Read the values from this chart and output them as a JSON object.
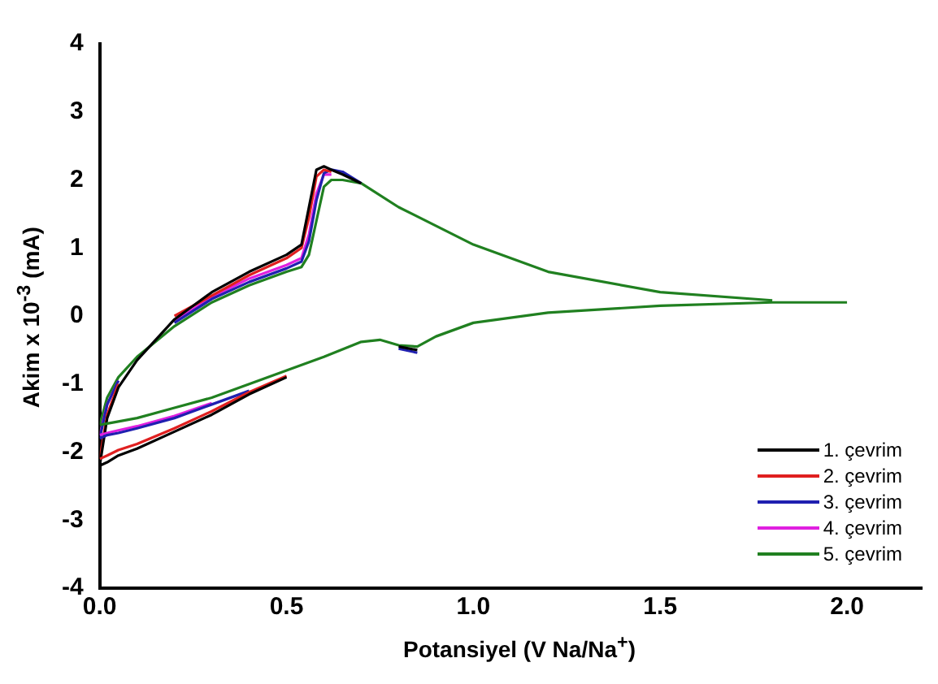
{
  "chart_data": {
    "type": "line",
    "xlabel": "Potansiyel (V Na/Na$^{+}$)",
    "ylabel": "Akim x 10$^{-3}$ (mA)",
    "series": [
      {
        "name": "1. çevrim",
        "color": "#000000",
        "x": [
          0.0,
          0.02,
          0.05,
          0.1,
          0.2,
          0.3,
          0.4,
          0.5,
          0.6,
          0.7,
          0.75,
          0.8,
          0.85
        ],
        "values": [
          -2.2,
          -2.15,
          -2.05,
          -1.95,
          -1.7,
          -1.45,
          -1.15,
          -0.9,
          null,
          null,
          null,
          -0.45,
          -0.5
        ]
      },
      {
        "name": "2. çevrim",
        "color": "#e02020",
        "x": [
          0.0,
          0.02,
          0.05,
          0.1,
          0.2,
          0.3,
          0.4,
          0.5
        ],
        "values": [
          -2.1,
          -2.05,
          -1.97,
          -1.88,
          -1.65,
          -1.4,
          -1.12,
          -0.88
        ]
      },
      {
        "name": "3. çevrim",
        "color": "#2020b0",
        "x": [
          0.0,
          0.02,
          0.05,
          0.1,
          0.2,
          0.3,
          0.4,
          0.5,
          0.6,
          0.7,
          0.75,
          0.8,
          0.85
        ],
        "values": [
          -1.8,
          -1.75,
          -1.72,
          -1.65,
          -1.5,
          -1.3,
          -1.1,
          null,
          null,
          null,
          null,
          -0.48,
          -0.54
        ]
      },
      {
        "name": "4. çevrim",
        "color": "#e020e0",
        "x": [
          0.0,
          0.02,
          0.05,
          0.1,
          0.2,
          0.3
        ],
        "values": [
          -1.75,
          -1.72,
          -1.68,
          -1.62,
          -1.47,
          -1.28
        ]
      },
      {
        "name": "5. çevrim",
        "color": "#208020",
        "x": [
          0.0,
          0.02,
          0.05,
          0.1,
          0.2,
          0.3,
          0.4,
          0.5,
          0.6,
          0.7,
          0.75,
          0.8,
          0.85,
          0.9,
          1.0,
          1.2,
          1.5,
          1.8,
          2.0
        ],
        "values": [
          -1.6,
          -1.58,
          -1.55,
          -1.5,
          -1.35,
          -1.2,
          -1.0,
          -0.8,
          -0.6,
          -0.38,
          -0.35,
          -0.43,
          -0.45,
          -0.3,
          -0.1,
          0.05,
          0.15,
          0.2,
          0.2
        ]
      },
      {
        "color": "#000000",
        "x": [
          0.0,
          0.02,
          0.05,
          0.1,
          0.2,
          0.3,
          0.4,
          0.5,
          0.54,
          0.56,
          0.58,
          0.6,
          0.62,
          0.65,
          0.7
        ],
        "values": [
          -2.2,
          -1.5,
          -1.05,
          -0.65,
          -0.05,
          0.35,
          0.65,
          0.9,
          1.05,
          1.6,
          2.15,
          2.2,
          2.15,
          2.08,
          1.95
        ]
      },
      {
        "color": "#e02020",
        "x": [
          0.0,
          0.02,
          0.05,
          0.1,
          0.2,
          0.3,
          0.4,
          0.5,
          0.54,
          0.56,
          0.58,
          0.6,
          0.62
        ],
        "values": [
          -2.1,
          -1.45,
          -1.0,
          null,
          0.0,
          0.3,
          0.6,
          0.85,
          1.0,
          1.45,
          2.05,
          2.15,
          2.12
        ]
      },
      {
        "color": "#2020b0",
        "x": [
          0.0,
          0.02,
          0.05,
          0.1,
          0.2,
          0.3,
          0.4,
          0.5,
          0.54,
          0.56,
          0.58,
          0.6,
          0.62,
          0.65,
          0.7
        ],
        "values": [
          -1.8,
          -1.3,
          -0.95,
          null,
          -0.1,
          0.25,
          0.5,
          0.7,
          0.8,
          1.1,
          1.7,
          2.1,
          2.15,
          2.12,
          1.95
        ]
      },
      {
        "color": "#e020e0",
        "x": [
          0.0,
          0.02,
          0.05,
          0.1,
          0.2,
          0.3,
          0.4,
          0.5,
          0.54,
          0.56,
          0.58,
          0.6,
          0.62
        ],
        "values": [
          -1.75,
          -1.3,
          -0.95,
          null,
          -0.08,
          0.28,
          0.55,
          0.75,
          0.85,
          1.2,
          1.8,
          2.08,
          2.08
        ]
      },
      {
        "color": "#208020",
        "x": [
          0.0,
          0.02,
          0.05,
          0.1,
          0.2,
          0.3,
          0.4,
          0.5,
          0.54,
          0.56,
          0.58,
          0.6,
          0.62,
          0.65,
          0.7,
          0.8,
          1.0,
          1.2,
          1.5,
          1.8
        ],
        "values": [
          -1.6,
          -1.2,
          -0.9,
          -0.6,
          -0.15,
          0.2,
          0.45,
          0.65,
          0.72,
          0.9,
          1.4,
          1.9,
          2.0,
          2.0,
          1.95,
          1.6,
          1.05,
          0.65,
          0.35,
          0.23
        ]
      }
    ],
    "xlim": [
      0,
      2.2
    ],
    "xticks": [
      {
        "value": 0,
        "label": "0.0"
      },
      {
        "value": 0.5,
        "label": "0.5"
      },
      {
        "value": 1,
        "label": "1.0"
      },
      {
        "value": 1.5,
        "label": "1.5"
      },
      {
        "value": 2,
        "label": "2.0"
      }
    ],
    "ylim": [
      -4,
      4
    ],
    "yticks": [
      -4,
      -3,
      -2,
      -1,
      0,
      1,
      2,
      3,
      4
    ],
    "grid": false,
    "legend": "bottom right",
    "marker": "none",
    "line_style": "solid"
  }
}
